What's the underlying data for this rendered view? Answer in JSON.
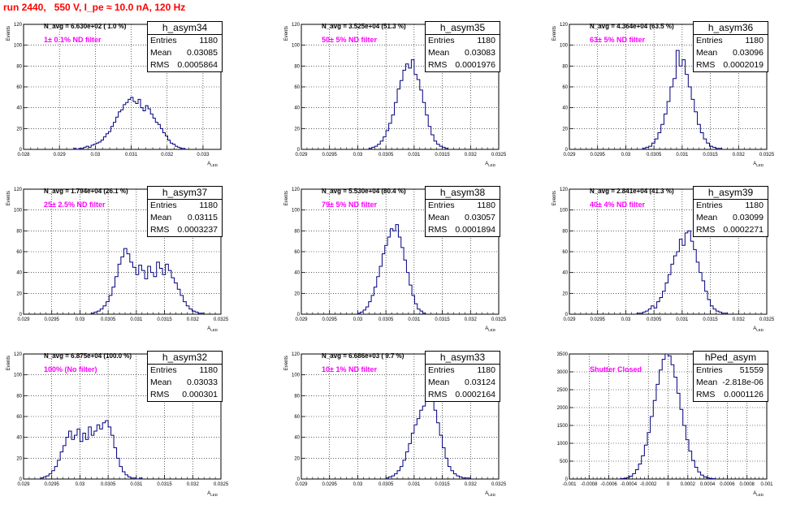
{
  "title": "run 2440,   550 V, I_pe ≈ 10.0 nA, 120 Hz",
  "stat_labels": {
    "entries": "Entries",
    "mean": "Mean",
    "rms": "RMS"
  },
  "colors": {
    "histogram": "#000080",
    "title": "#ff0000",
    "annotation": "#ff00ff",
    "grid": "#000000"
  },
  "chart_data": [
    {
      "type": "bar",
      "name": "h_asym34",
      "navg": "N_avg = 6.630e+02 ( 1.0 %)",
      "note": "1± 0.1% ND filter",
      "entries": "1180",
      "mean": "0.03085",
      "rms": "0.0005864",
      "xlabel": "A_LED",
      "ylabel": "Events",
      "xlim": [
        0.028,
        0.0335
      ],
      "ylim": [
        0,
        120
      ],
      "xticks": [
        0.028,
        0.029,
        0.03,
        0.031,
        0.032,
        0.033
      ],
      "xtick_labels": [
        "0.028",
        "0.029",
        "0.03",
        "0.031",
        "0.032",
        "0.033"
      ],
      "yticks": [
        0,
        20,
        40,
        60,
        80,
        100,
        120
      ],
      "hist_range": [
        0.0294,
        0.0325
      ],
      "counts": [
        1,
        0,
        1,
        1,
        2,
        3,
        2,
        4,
        5,
        6,
        7,
        9,
        12,
        15,
        17,
        22,
        26,
        31,
        36,
        38,
        43,
        45,
        48,
        50,
        46,
        44,
        48,
        40,
        37,
        42,
        39,
        34,
        30,
        26,
        24,
        20,
        16,
        13,
        9,
        6,
        5,
        3,
        2,
        1,
        1
      ]
    },
    {
      "type": "bar",
      "name": "h_asym35",
      "navg": "N_avg = 3.525e+04 (51.3 %)",
      "note": "50± 5% ND filter",
      "entries": "1180",
      "mean": "0.03083",
      "rms": "0.0001976",
      "xlabel": "A_LED",
      "ylabel": "Events",
      "xlim": [
        0.029,
        0.0325
      ],
      "ylim": [
        0,
        120
      ],
      "xticks": [
        0.029,
        0.0295,
        0.03,
        0.0305,
        0.031,
        0.0315,
        0.032,
        0.0325
      ],
      "xtick_labels": [
        "0.029",
        "0.0295",
        "0.03",
        "0.0305",
        "0.031",
        "0.0315",
        "0.032",
        "0.0325"
      ],
      "yticks": [
        0,
        20,
        40,
        60,
        80,
        100,
        120
      ],
      "hist_range": [
        0.0302,
        0.0316
      ],
      "counts": [
        1,
        2,
        3,
        5,
        8,
        12,
        18,
        25,
        33,
        45,
        58,
        66,
        76,
        82,
        78,
        86,
        72,
        67,
        57,
        45,
        33,
        22,
        14,
        8,
        5,
        3,
        2,
        1
      ]
    },
    {
      "type": "bar",
      "name": "h_asym36",
      "navg": "N_avg = 4.364e+04 (63.5 %)",
      "note": "63± 5% ND filter",
      "entries": "1180",
      "mean": "0.03096",
      "rms": "0.0002019",
      "xlabel": "A_LED",
      "ylabel": "Events",
      "xlim": [
        0.029,
        0.0325
      ],
      "ylim": [
        0,
        120
      ],
      "xticks": [
        0.029,
        0.0295,
        0.03,
        0.0305,
        0.031,
        0.0315,
        0.032,
        0.0325
      ],
      "xtick_labels": [
        "0.029",
        "0.0295",
        "0.03",
        "0.0305",
        "0.031",
        "0.0315",
        "0.032",
        "0.0325"
      ],
      "yticks": [
        0,
        20,
        40,
        60,
        80,
        100,
        120
      ],
      "hist_range": [
        0.0303,
        0.0317
      ],
      "counts": [
        1,
        2,
        3,
        6,
        10,
        16,
        24,
        34,
        46,
        60,
        68,
        95,
        80,
        86,
        72,
        60,
        48,
        36,
        24,
        16,
        10,
        6,
        3,
        2,
        1,
        1
      ]
    },
    {
      "type": "bar",
      "name": "h_asym37",
      "navg": "N_avg = 1.794e+04 (26.1 %)",
      "note": "25± 2.5% ND filter",
      "entries": "1180",
      "mean": "0.03115",
      "rms": "0.0003237",
      "xlabel": "A_LED",
      "ylabel": "Events",
      "xlim": [
        0.029,
        0.0325
      ],
      "ylim": [
        0,
        120
      ],
      "xticks": [
        0.029,
        0.0295,
        0.03,
        0.0305,
        0.031,
        0.0315,
        0.032,
        0.0325
      ],
      "xtick_labels": [
        "0.029",
        "0.0295",
        "0.03",
        "0.0305",
        "0.031",
        "0.0315",
        "0.032",
        "0.0325"
      ],
      "yticks": [
        0,
        20,
        40,
        60,
        80,
        100,
        120
      ],
      "hist_range": [
        0.0302,
        0.0322
      ],
      "counts": [
        1,
        2,
        3,
        5,
        8,
        12,
        18,
        26,
        36,
        48,
        55,
        63,
        58,
        50,
        45,
        38,
        47,
        42,
        34,
        46,
        40,
        36,
        50,
        44,
        38,
        48,
        42,
        35,
        30,
        24,
        18,
        12,
        8,
        5,
        3,
        2,
        1,
        1
      ]
    },
    {
      "type": "bar",
      "name": "h_asym38",
      "navg": "N_avg = 5.530e+04 (80.4 %)",
      "note": "79± 5% ND filter",
      "entries": "1180",
      "mean": "0.03057",
      "rms": "0.0001894",
      "xlabel": "A_LED",
      "ylabel": "Events",
      "xlim": [
        0.029,
        0.0325
      ],
      "ylim": [
        0,
        120
      ],
      "xticks": [
        0.029,
        0.0295,
        0.03,
        0.0305,
        0.031,
        0.0315,
        0.032,
        0.0325
      ],
      "xtick_labels": [
        "0.029",
        "0.0295",
        "0.03",
        "0.0305",
        "0.031",
        "0.0315",
        "0.032",
        "0.0325"
      ],
      "yticks": [
        0,
        20,
        40,
        60,
        80,
        100,
        120
      ],
      "hist_range": [
        0.03,
        0.0312
      ],
      "counts": [
        1,
        2,
        4,
        7,
        12,
        18,
        26,
        36,
        46,
        58,
        66,
        74,
        82,
        80,
        86,
        74,
        64,
        52,
        40,
        28,
        18,
        10,
        5,
        3,
        1
      ]
    },
    {
      "type": "bar",
      "name": "h_asym39",
      "navg": "N_avg = 2.841e+04 (41.3 %)",
      "note": "40± 4% ND filter",
      "entries": "1180",
      "mean": "0.03099",
      "rms": "0.0002271",
      "xlabel": "A_LED",
      "ylabel": "Events",
      "xlim": [
        0.029,
        0.0325
      ],
      "ylim": [
        0,
        120
      ],
      "xticks": [
        0.029,
        0.0295,
        0.03,
        0.0305,
        0.031,
        0.0315,
        0.032,
        0.0325
      ],
      "xtick_labels": [
        "0.029",
        "0.0295",
        "0.03",
        "0.0305",
        "0.031",
        "0.0315",
        "0.032",
        "0.0325"
      ],
      "yticks": [
        0,
        20,
        40,
        60,
        80,
        100,
        120
      ],
      "hist_range": [
        0.0302,
        0.0318
      ],
      "counts": [
        1,
        1,
        2,
        3,
        5,
        8,
        6,
        12,
        16,
        22,
        30,
        38,
        48,
        56,
        60,
        72,
        66,
        78,
        80,
        70,
        62,
        50,
        40,
        32,
        22,
        14,
        8,
        5,
        3,
        2,
        1,
        1
      ]
    },
    {
      "type": "bar",
      "name": "h_asym32",
      "navg": "N_avg = 6.875e+04 (100.0 %)",
      "note": "100% (No filter)",
      "entries": "1180",
      "mean": "0.03033",
      "rms": "0.000301",
      "xlabel": "A_LED",
      "ylabel": "Events",
      "xlim": [
        0.029,
        0.0325
      ],
      "ylim": [
        0,
        120
      ],
      "xticks": [
        0.029,
        0.0295,
        0.03,
        0.0305,
        0.031,
        0.0315,
        0.032,
        0.0325
      ],
      "xtick_labels": [
        "0.029",
        "0.0295",
        "0.03",
        "0.0305",
        "0.031",
        "0.0315",
        "0.032",
        "0.0325"
      ],
      "yticks": [
        0,
        20,
        40,
        60,
        80,
        100,
        120
      ],
      "hist_range": [
        0.0293,
        0.0311
      ],
      "counts": [
        1,
        2,
        3,
        5,
        8,
        12,
        18,
        26,
        32,
        40,
        46,
        38,
        42,
        48,
        36,
        44,
        38,
        50,
        42,
        46,
        52,
        48,
        54,
        56,
        50,
        42,
        30,
        20,
        12,
        7,
        4,
        2,
        1,
        1,
        0,
        1
      ]
    },
    {
      "type": "bar",
      "name": "h_asym33",
      "navg": "N_avg = 6.686e+03 ( 9.7 %)",
      "note": "10± 1% ND filter",
      "entries": "1180",
      "mean": "0.03124",
      "rms": "0.0002164",
      "xlabel": "A_LED",
      "ylabel": "Events",
      "xlim": [
        0.029,
        0.0325
      ],
      "ylim": [
        0,
        120
      ],
      "xticks": [
        0.029,
        0.0295,
        0.03,
        0.0305,
        0.031,
        0.0315,
        0.032,
        0.0325
      ],
      "xtick_labels": [
        "0.029",
        "0.0295",
        "0.03",
        "0.0305",
        "0.031",
        "0.0315",
        "0.032",
        "0.0325"
      ],
      "yticks": [
        0,
        20,
        40,
        60,
        80,
        100,
        120
      ],
      "hist_range": [
        0.0305,
        0.032
      ],
      "counts": [
        1,
        2,
        3,
        5,
        8,
        12,
        18,
        26,
        34,
        44,
        52,
        58,
        66,
        70,
        80,
        76,
        78,
        66,
        54,
        42,
        30,
        20,
        12,
        8,
        5,
        3,
        2,
        1,
        1,
        1
      ]
    },
    {
      "type": "bar",
      "name": "hPed_asym",
      "navg": "",
      "note": "Shutter Closed",
      "entries": "51559",
      "mean": "-2.818e-06",
      "rms": "0.0001126",
      "xlabel": "A_LED",
      "ylabel": "",
      "xlim": [
        -0.001,
        0.001
      ],
      "ylim": [
        0,
        3500
      ],
      "xticks": [
        -0.001,
        -0.0008,
        -0.0006,
        -0.0004,
        -0.0002,
        0,
        0.0002,
        0.0004,
        0.0006,
        0.0008,
        0.001
      ],
      "xtick_labels": [
        "-0.001",
        "-0.0008",
        "-0.0006",
        "-0.0004",
        "-0.0002",
        "0",
        "0.0002",
        "0.0004",
        "0.0006",
        "0.0008",
        "0.001"
      ],
      "yticks": [
        0,
        500,
        1000,
        1500,
        2000,
        2500,
        3000,
        3500
      ],
      "hist_range": [
        -0.00048,
        0.00048
      ],
      "counts": [
        10,
        20,
        40,
        80,
        150,
        260,
        420,
        650,
        950,
        1300,
        1750,
        2200,
        2650,
        3050,
        3350,
        3500,
        3450,
        3200,
        2850,
        2400,
        1950,
        1500,
        1100,
        780,
        520,
        330,
        200,
        110,
        60,
        30,
        15,
        8
      ]
    }
  ]
}
